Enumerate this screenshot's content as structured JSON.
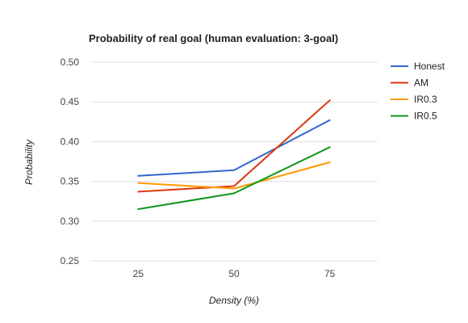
{
  "chart_data": {
    "type": "line",
    "title": "Probability of real goal (human evaluation: 3-goal)",
    "xlabel": "Density (%)",
    "ylabel": "Probability",
    "categories": [
      "25",
      "50",
      "75"
    ],
    "ylim": [
      0.25,
      0.5
    ],
    "yticks": [
      "0.25",
      "0.30",
      "0.35",
      "0.40",
      "0.45",
      "0.50"
    ],
    "grid": true,
    "legend_position": "right",
    "series": [
      {
        "name": "Honest",
        "color": "#3366cc",
        "values": [
          0.357,
          0.364,
          0.427
        ]
      },
      {
        "name": "AM",
        "color": "#dc3912",
        "values": [
          0.337,
          0.344,
          0.452
        ]
      },
      {
        "name": "IR0.3",
        "color": "#ff9900",
        "values": [
          0.348,
          0.341,
          0.374
        ]
      },
      {
        "name": "IR0.5",
        "color": "#109618",
        "values": [
          0.315,
          0.335,
          0.393
        ]
      }
    ]
  }
}
